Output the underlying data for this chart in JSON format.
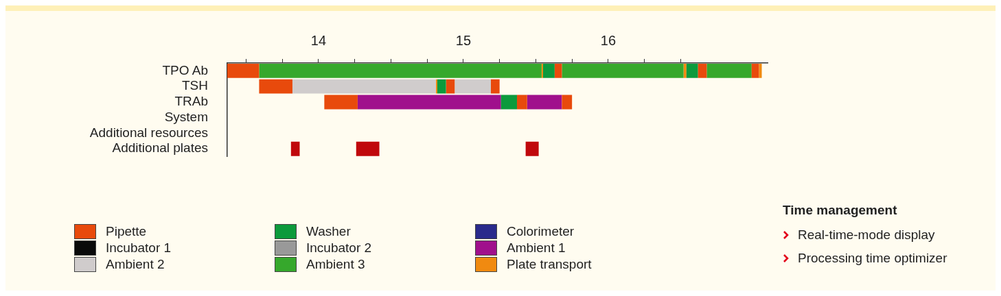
{
  "chart_data": {
    "type": "bar",
    "orientation": "horizontal",
    "categories": [
      "TPO Ab",
      "TSH",
      "TRAb",
      "System",
      "Additional resources",
      "Additional plates"
    ],
    "xlim": [
      13.37,
      17.1
    ],
    "xticks": [
      {
        "value": 13.5,
        "label": null
      },
      {
        "value": 13.75,
        "label": null
      },
      14,
      {
        "value": 14.25,
        "label": null
      },
      {
        "value": 14.5,
        "label": null
      },
      {
        "value": 14.75,
        "label": null
      },
      15,
      {
        "value": 15.25,
        "label": null
      },
      {
        "value": 15.5,
        "label": null
      },
      {
        "value": 15.75,
        "label": null
      },
      16,
      {
        "value": 16.25,
        "label": null
      },
      {
        "value": 16.5,
        "label": null
      }
    ],
    "legend": "bottom",
    "series": [
      {
        "name": "Pipette",
        "color": "#e84a0c",
        "base": [
          13.37,
          13.59,
          14.04,
          null,
          null,
          null
        ],
        "values": [
          0.22,
          0.23,
          0.23,
          null,
          null,
          null
        ]
      },
      {
        "name": "Incubator 1",
        "color": "#0a0a0a",
        "values": [
          null,
          null,
          null,
          null,
          null,
          null
        ]
      },
      {
        "name": "Ambient 2",
        "color": "#d0cccc",
        "base": [
          null,
          13.82,
          null,
          null,
          null,
          null
        ],
        "values": [
          null,
          0.99,
          null,
          null,
          null,
          null
        ]
      },
      {
        "name": "Washer",
        "color": "#0c9a3c",
        "base": [
          15.55,
          14.82,
          15.26,
          null,
          null,
          null
        ],
        "values": [
          0.08,
          0.06,
          0.11,
          null,
          null,
          null
        ]
      },
      {
        "name": "Incubator 2",
        "color": "#999999",
        "values": [
          null,
          null,
          null,
          null,
          null,
          null
        ]
      },
      {
        "name": "Ambient 3",
        "color": "#36a82c",
        "base": [
          13.59,
          null,
          null,
          null,
          null,
          null
        ],
        "values": [
          1.95,
          null,
          null,
          null,
          null,
          null
        ]
      },
      {
        "name": "Colorimeter",
        "color": "#2a2a8c",
        "values": [
          null,
          null,
          null,
          null,
          null,
          null
        ]
      },
      {
        "name": "Ambient 1",
        "color": "#a0108c",
        "base": [
          null,
          null,
          14.27,
          null,
          null,
          null
        ],
        "values": [
          null,
          null,
          0.99,
          null,
          null,
          null
        ]
      },
      {
        "name": "Plate transport",
        "color": "#f08a10",
        "base": [
          15.54,
          14.81,
          null,
          null,
          null,
          null
        ],
        "values": [
          0.01,
          0.01,
          null,
          null,
          null,
          null
        ]
      },
      {
        "color": "#e84a0c",
        "base": [
          15.63,
          14.88,
          15.37,
          null,
          null,
          null
        ],
        "values": [
          0.05,
          0.06,
          0.07,
          null,
          null,
          null
        ]
      },
      {
        "color": "#e84a0c",
        "base": [
          16.62,
          15.19,
          15.68,
          null,
          null,
          null
        ],
        "values": [
          0.06,
          0.06,
          0.07,
          null,
          null,
          null
        ]
      },
      {
        "color": "#e84a0c",
        "base": [
          16.99,
          null,
          null,
          null,
          null,
          null
        ],
        "values": [
          0.05,
          null,
          null,
          null,
          null,
          null
        ]
      },
      {
        "color": "#d0cccc",
        "base": [
          null,
          14.94,
          null,
          null,
          null,
          null
        ],
        "values": [
          null,
          0.25,
          null,
          null,
          null,
          null
        ]
      },
      {
        "color": "#0c9a3c",
        "base": [
          16.54,
          null,
          null,
          null,
          null,
          null
        ],
        "values": [
          0.08,
          null,
          null,
          null,
          null,
          null
        ]
      },
      {
        "color": "#36a82c",
        "base": [
          15.68,
          null,
          null,
          null,
          null,
          null
        ],
        "values": [
          0.84,
          null,
          null,
          null,
          null,
          null
        ]
      },
      {
        "color": "#36a82c",
        "base": [
          16.68,
          null,
          null,
          null,
          null,
          null
        ],
        "values": [
          0.31,
          null,
          null,
          null,
          null,
          null
        ]
      },
      {
        "color": "#a0108c",
        "base": [
          null,
          null,
          15.44,
          null,
          null,
          null
        ],
        "values": [
          null,
          null,
          0.24,
          null,
          null,
          null
        ]
      },
      {
        "color": "#f08a10",
        "base": [
          16.52,
          null,
          null,
          null,
          null,
          null
        ],
        "values": [
          0.02,
          null,
          null,
          null,
          null,
          null
        ]
      },
      {
        "color": "#f08a10",
        "base": [
          17.04,
          null,
          null,
          null,
          null,
          null
        ],
        "values": [
          0.02,
          null,
          null,
          null,
          null,
          null
        ]
      },
      {
        "color": "#c0080c",
        "base": [
          null,
          null,
          null,
          null,
          null,
          13.81
        ],
        "values": [
          null,
          null,
          null,
          null,
          null,
          0.06
        ]
      },
      {
        "color": "#c0080c",
        "base": [
          null,
          null,
          null,
          null,
          null,
          14.26
        ],
        "values": [
          null,
          null,
          null,
          null,
          null,
          0.16
        ]
      },
      {
        "color": "#c0080c",
        "base": [
          null,
          null,
          null,
          null,
          null,
          15.43
        ],
        "values": [
          null,
          null,
          null,
          null,
          null,
          0.09
        ]
      }
    ],
    "annotations": [
      "Time management",
      "Real-time-mode display",
      "Processing time optimizer"
    ]
  }
}
